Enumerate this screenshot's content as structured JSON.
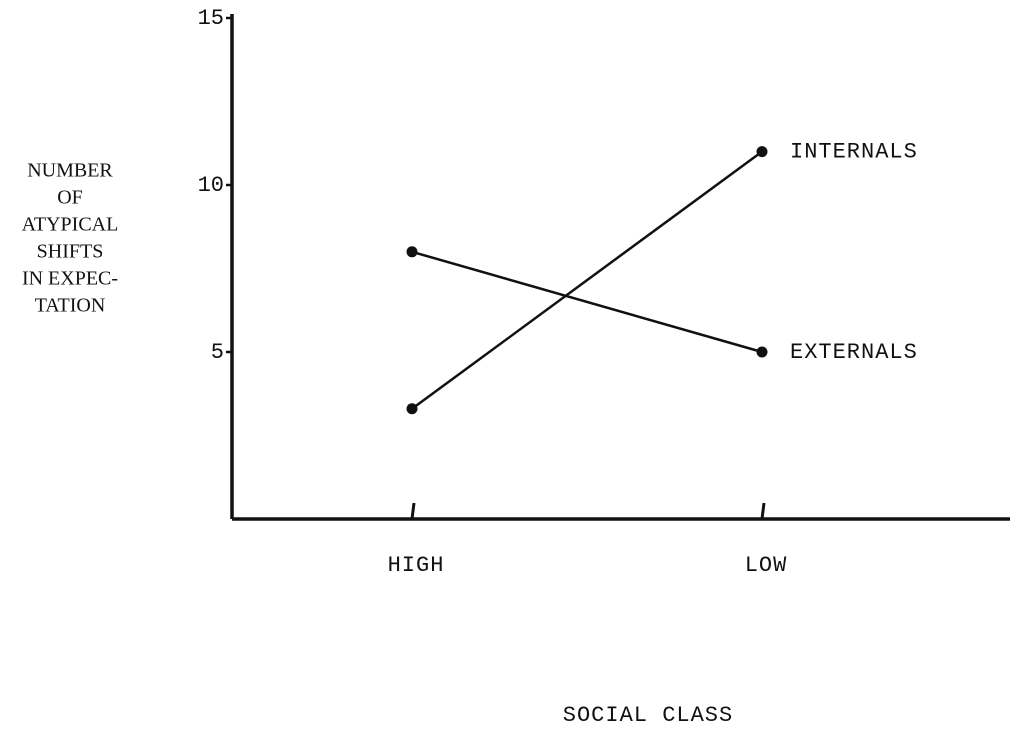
{
  "chart_data": {
    "type": "line",
    "categories": [
      "HIGH",
      "LOW"
    ],
    "series": [
      {
        "name": "INTERNALS",
        "color": "#111111",
        "values": [
          3.3,
          11
        ]
      },
      {
        "name": "EXTERNALS",
        "color": "#111111",
        "values": [
          8,
          5
        ]
      }
    ],
    "xlabel": "SOCIAL CLASS",
    "ylabel": [
      "NUMBER",
      "OF",
      "ATYPICAL",
      "SHIFTS",
      "IN EXPEC-",
      "TATION"
    ],
    "ylim": [
      0,
      15
    ],
    "yticks": [
      5,
      10,
      15
    ]
  }
}
